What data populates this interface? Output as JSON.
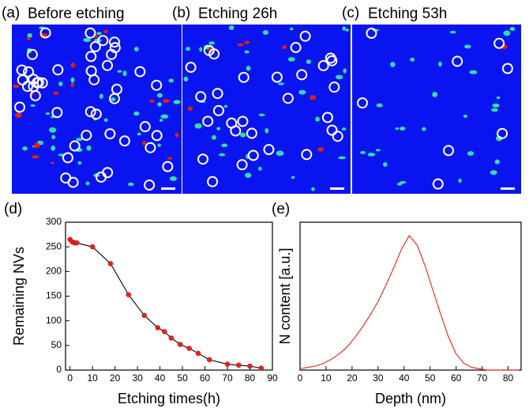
{
  "panels": [
    {
      "label": "(a)",
      "title": "Before etching"
    },
    {
      "label": "(b)",
      "title": "Etching  26h"
    },
    {
      "label": "(c)",
      "title": "Etching  53h"
    }
  ],
  "chart_data": [
    {
      "type": "line",
      "panel_label": "(d)",
      "x_label": "Etching times(h)",
      "y_label": "Remaining NVs",
      "x": [
        0,
        1,
        2,
        3,
        10,
        18,
        26,
        33,
        39,
        42,
        45,
        49,
        53,
        57,
        62,
        70,
        75,
        80,
        85
      ],
      "series": [
        {
          "color": "#e8231c",
          "line_color": "#000000",
          "markers": true,
          "values": [
            265,
            260,
            258,
            258,
            250,
            216,
            153,
            111,
            86,
            78,
            65,
            52,
            44,
            34,
            21,
            12,
            10,
            8,
            4
          ]
        }
      ],
      "xlim": [
        -2,
        90
      ],
      "xticks": [
        0,
        10,
        20,
        30,
        40,
        50,
        60,
        70,
        80,
        90
      ],
      "ylim": [
        0,
        300
      ],
      "yticks": [
        0,
        50,
        100,
        150,
        200,
        250,
        300
      ]
    },
    {
      "type": "line",
      "panel_label": "(e)",
      "x_label": "Depth (nm)",
      "y_label": "N content [a.u.]",
      "x": [
        0,
        3,
        6,
        9,
        12,
        15,
        18,
        21,
        24,
        27,
        30,
        33,
        36,
        39,
        42,
        45,
        48,
        51,
        54,
        57,
        60,
        63,
        66,
        69,
        72,
        75,
        78,
        81,
        84
      ],
      "series": [
        {
          "color": "#e8231c",
          "markers": false,
          "values": [
            0.01,
            0.02,
            0.03,
            0.05,
            0.08,
            0.12,
            0.17,
            0.24,
            0.32,
            0.41,
            0.51,
            0.63,
            0.76,
            0.9,
            1.0,
            0.93,
            0.78,
            0.6,
            0.42,
            0.25,
            0.12,
            0.05,
            0.02,
            0.01,
            0,
            0,
            0,
            0,
            0
          ]
        }
      ],
      "xlim": [
        0,
        85
      ],
      "xticks": [
        0,
        10,
        20,
        30,
        40,
        50,
        60,
        70,
        80
      ],
      "ylim": [
        0,
        1.1
      ]
    }
  ]
}
